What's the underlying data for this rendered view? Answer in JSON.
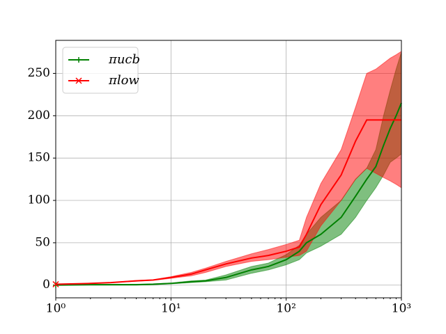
{
  "chart_data": {
    "type": "line",
    "xscale": "log",
    "grid": true,
    "legend": "upper left",
    "x": [
      1,
      2,
      3,
      5,
      7,
      10,
      15,
      20,
      30,
      50,
      70,
      100,
      130,
      150,
      200,
      300,
      400,
      500,
      600,
      700,
      800,
      900,
      1000
    ],
    "xlim": [
      1,
      1000
    ],
    "xticks": [
      {
        "value": 1,
        "label": "10⁰"
      },
      {
        "value": 10,
        "label": "10¹"
      },
      {
        "value": 100,
        "label": "10²"
      },
      {
        "value": 1000,
        "label": "10³"
      }
    ],
    "ylim": [
      -15,
      289
    ],
    "yticks": [
      0,
      50,
      100,
      150,
      200,
      250
    ],
    "series": [
      {
        "name": "πucb",
        "color": "#008000",
        "marker": "+",
        "values": [
          0,
          0.5,
          0.5,
          0.5,
          1,
          2,
          4,
          5,
          9,
          18,
          22,
          30,
          40,
          50,
          60,
          80,
          105,
          125,
          140,
          165,
          185,
          200,
          215
        ],
        "lower": [
          0,
          0,
          0,
          0,
          0.5,
          1.5,
          3,
          4,
          6,
          14,
          18,
          24,
          30,
          38,
          46,
          60,
          80,
          100,
          115,
          130,
          145,
          150,
          155
        ],
        "upper": [
          0,
          1,
          1,
          1,
          1.5,
          2.5,
          5,
          6,
          12,
          22,
          26,
          36,
          47,
          60,
          80,
          100,
          125,
          138,
          160,
          200,
          230,
          255,
          275
        ]
      },
      {
        "name": "πlow",
        "color": "#ff0000",
        "marker": "x",
        "values": [
          1,
          2,
          3,
          5,
          6,
          9,
          13,
          18,
          25,
          32,
          35,
          40,
          45,
          60,
          95,
          130,
          170,
          195,
          195,
          195,
          195,
          195,
          195
        ],
        "lower": [
          1,
          2,
          3,
          4.5,
          5.5,
          8,
          11,
          15,
          22,
          28,
          30,
          33,
          35,
          40,
          70,
          100,
          125,
          138,
          132,
          127,
          123,
          119,
          115
        ],
        "upper": [
          1,
          2,
          3,
          5.5,
          6.5,
          10,
          15,
          20,
          28,
          37,
          42,
          48,
          53,
          80,
          120,
          160,
          210,
          250,
          255,
          262,
          268,
          272,
          276
        ]
      }
    ]
  }
}
